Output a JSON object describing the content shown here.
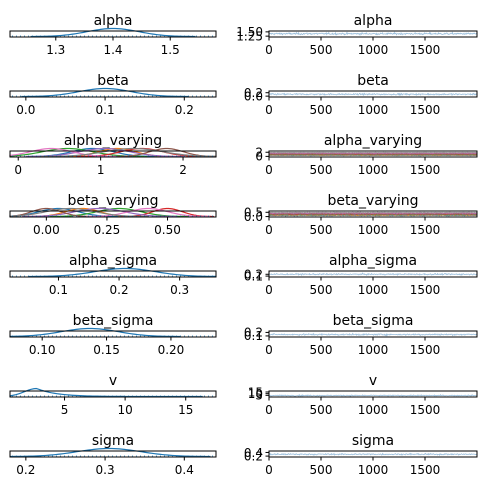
{
  "chart_data": {
    "type": "trace",
    "layout": "8 rows x 2 columns (posterior density | trace)",
    "trace_xlim": [
      0,
      2000
    ],
    "trace_xticks": [
      0,
      500,
      1000,
      1500
    ],
    "trace_xtick_labels": [
      "0",
      "500",
      "1000",
      "1500"
    ],
    "colors": {
      "main": "#1f77b4",
      "trace": "#8ab4d6",
      "cycle": [
        "#1f77b4",
        "#ff7f0e",
        "#2ca02c",
        "#d62728",
        "#9467bd",
        "#8c564b",
        "#e377c2",
        "#7f7f7f",
        "#bcbd22",
        "#17becf"
      ]
    },
    "parameters": [
      {
        "name": "alpha",
        "density": {
          "xlim": [
            1.22,
            1.58
          ],
          "xticks": [
            1.3,
            1.4,
            1.5
          ],
          "xtick_labels": [
            "1.3",
            "1.4",
            "1.5"
          ],
          "series": [
            {
              "mean": 1.4,
              "sd": 0.045
            }
          ]
        },
        "trace": {
          "ylim": [
            1.2,
            1.55
          ],
          "yticks": [
            1.25,
            1.5
          ],
          "ytick_labels": [
            "1.25",
            "1.50"
          ],
          "center": 1.39,
          "spread": 0.1
        }
      },
      {
        "name": "beta",
        "density": {
          "xlim": [
            -0.02,
            0.24
          ],
          "xticks": [
            0.0,
            0.1,
            0.2
          ],
          "xtick_labels": [
            "0.0",
            "0.1",
            "0.2"
          ],
          "series": [
            {
              "mean": 0.1,
              "sd": 0.033
            }
          ]
        },
        "trace": {
          "ylim": [
            -0.05,
            0.3
          ],
          "yticks": [
            0.0,
            0.2
          ],
          "ytick_labels": [
            "0.0",
            "0.2"
          ],
          "center": 0.11,
          "spread": 0.08
        }
      },
      {
        "name": "alpha_varying",
        "density": {
          "xlim": [
            -0.1,
            2.4
          ],
          "xticks": [
            0,
            1,
            2
          ],
          "xtick_labels": [
            "0",
            "1",
            "2"
          ],
          "series": [
            {
              "mean": 0.9,
              "sd": 0.25
            },
            {
              "mean": 1.2,
              "sd": 0.22
            },
            {
              "mean": 0.6,
              "sd": 0.3
            },
            {
              "mean": 1.5,
              "sd": 0.25
            },
            {
              "mean": 1.05,
              "sd": 0.3
            },
            {
              "mean": 1.8,
              "sd": 0.2
            },
            {
              "mean": 0.4,
              "sd": 0.25
            },
            {
              "mean": 1.4,
              "sd": 0.35
            }
          ]
        },
        "trace": {
          "ylim": [
            -0.3,
            2.6
          ],
          "yticks": [
            0,
            2
          ],
          "ytick_labels": [
            "0",
            "2"
          ],
          "center": 1.0,
          "spread": 0.6,
          "multi": true
        }
      },
      {
        "name": "beta_varying",
        "density": {
          "xlim": [
            -0.15,
            0.7
          ],
          "xticks": [
            0.0,
            0.25,
            0.5
          ],
          "xtick_labels": [
            "0.00",
            "0.25",
            "0.50"
          ],
          "series": [
            {
              "mean": 0.05,
              "sd": 0.08
            },
            {
              "mean": 0.15,
              "sd": 0.07
            },
            {
              "mean": 0.3,
              "sd": 0.09
            },
            {
              "mean": 0.5,
              "sd": 0.06
            },
            {
              "mean": 0.22,
              "sd": 0.1
            },
            {
              "mean": 0.0,
              "sd": 0.06
            },
            {
              "mean": 0.42,
              "sd": 0.08
            },
            {
              "mean": 0.1,
              "sd": 0.1
            }
          ]
        },
        "trace": {
          "ylim": [
            -0.05,
            0.65
          ],
          "yticks": [
            0.0,
            0.5
          ],
          "ytick_labels": [
            "0.0",
            "0.5"
          ],
          "center": 0.25,
          "spread": 0.25,
          "multi": true
        }
      },
      {
        "name": "alpha_sigma",
        "density": {
          "xlim": [
            0.02,
            0.36
          ],
          "xticks": [
            0.1,
            0.2,
            0.3
          ],
          "xtick_labels": [
            "0.1",
            "0.2",
            "0.3"
          ],
          "series": [
            {
              "mean": 0.21,
              "sd": 0.05
            }
          ]
        },
        "trace": {
          "ylim": [
            0.05,
            0.38
          ],
          "yticks": [
            0.1,
            0.2
          ],
          "ytick_labels": [
            "0.1",
            "0.2"
          ],
          "center": 0.2,
          "spread": 0.07
        }
      },
      {
        "name": "beta_sigma",
        "density": {
          "xlim": [
            0.075,
            0.235
          ],
          "xticks": [
            0.1,
            0.15,
            0.2
          ],
          "xtick_labels": [
            "0.10",
            "0.15",
            "0.20"
          ],
          "series": [
            {
              "mean": 0.137,
              "sd": 0.022
            }
          ]
        },
        "trace": {
          "ylim": [
            0.07,
            0.24
          ],
          "yticks": [
            0.1,
            0.2
          ],
          "ytick_labels": [
            "0.1",
            "0.2"
          ],
          "center": 0.14,
          "spread": 0.04
        }
      },
      {
        "name": "v",
        "density": {
          "xlim": [
            0.5,
            17.5
          ],
          "xticks": [
            5,
            10,
            15
          ],
          "xtick_labels": [
            "5",
            "10",
            "15"
          ],
          "series": [
            {
              "mean": 2.7,
              "sd": 1.0,
              "tail": 3.5
            }
          ]
        },
        "trace": {
          "ylim": [
            0,
            18
          ],
          "yticks": [
            5,
            10,
            15
          ],
          "ytick_labels": [
            "5",
            "10",
            "15"
          ],
          "center": 4.5,
          "spread": 3.0
        }
      },
      {
        "name": "sigma",
        "density": {
          "xlim": [
            0.18,
            0.44
          ],
          "xticks": [
            0.2,
            0.3,
            0.4
          ],
          "xtick_labels": [
            "0.2",
            "0.3",
            "0.4"
          ],
          "series": [
            {
              "mean": 0.305,
              "sd": 0.04
            }
          ]
        },
        "trace": {
          "ylim": [
            0.15,
            0.48
          ],
          "yticks": [
            0.2,
            0.4
          ],
          "ytick_labels": [
            "0.2",
            "0.4"
          ],
          "center": 0.3,
          "spread": 0.07
        }
      }
    ]
  }
}
